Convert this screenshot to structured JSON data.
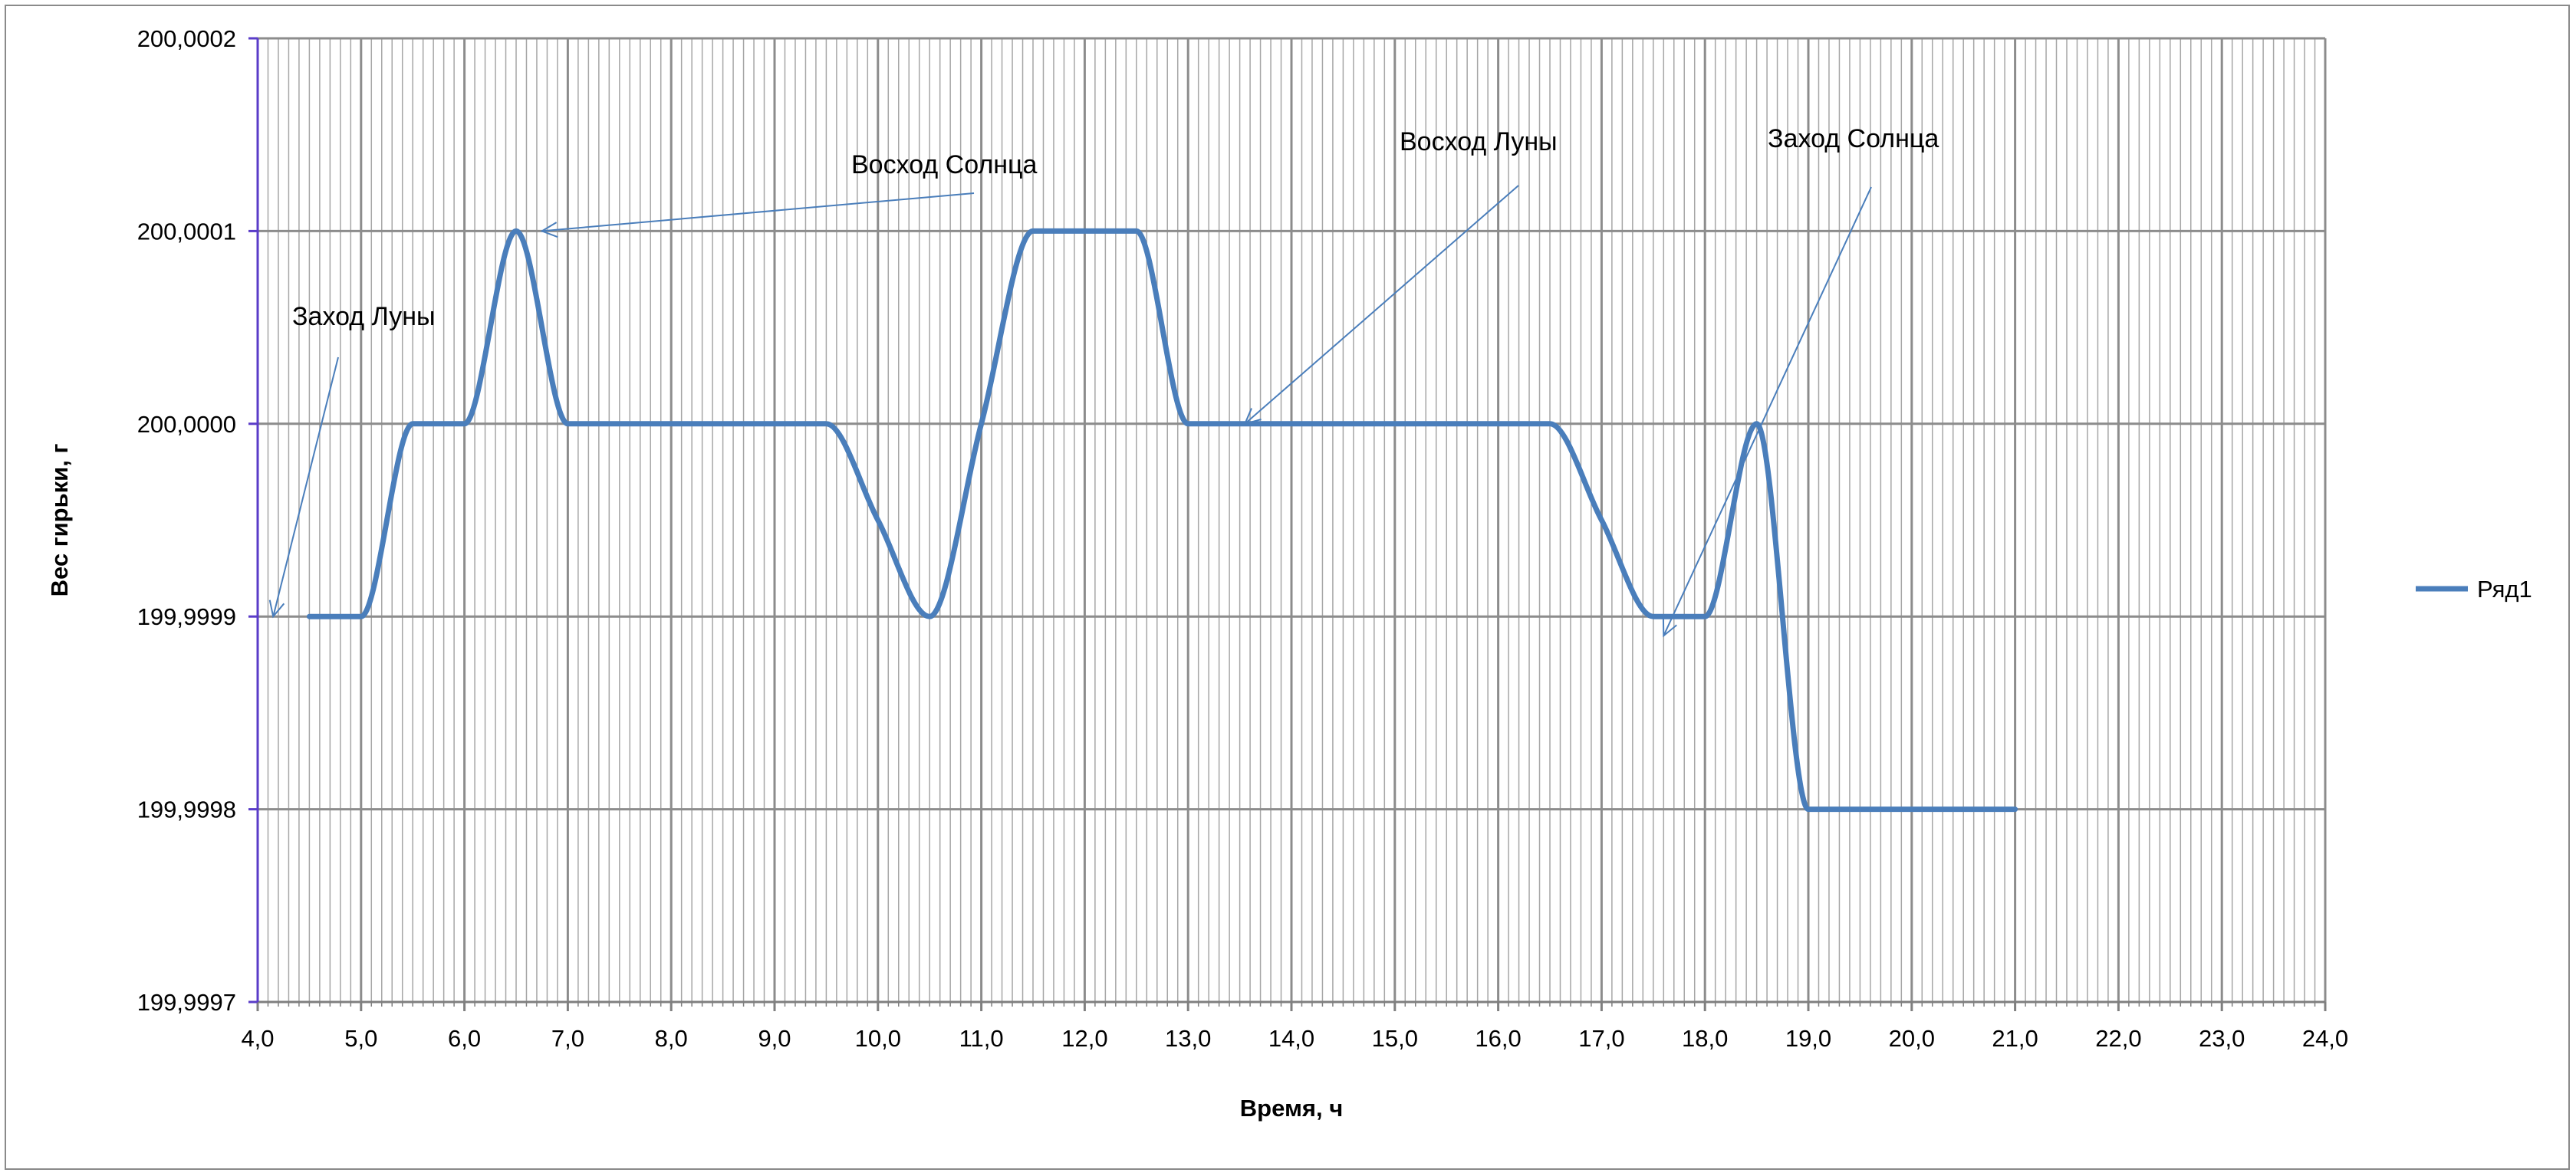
{
  "chart_data": {
    "type": "line",
    "title": "",
    "xlabel": "Время, ч",
    "ylabel": "Вес гирьки, г",
    "xlim": [
      4.0,
      24.0
    ],
    "ylim": [
      199.9997,
      200.0002
    ],
    "x_ticks": [
      "4,0",
      "5,0",
      "6,0",
      "7,0",
      "8,0",
      "9,0",
      "10,0",
      "11,0",
      "12,0",
      "13,0",
      "14,0",
      "15,0",
      "16,0",
      "17,0",
      "18,0",
      "19,0",
      "20,0",
      "21,0",
      "22,0",
      "23,0",
      "24,0"
    ],
    "y_ticks": [
      "200,0002",
      "200,0001",
      "200,0000",
      "199,9999",
      "199,9998",
      "199,9997"
    ],
    "grid": true,
    "legend_position": "right",
    "series": [
      {
        "name": "Ряд1",
        "color": "#4a7ebb",
        "x": [
          4.5,
          5.0,
          5.5,
          6.0,
          6.5,
          7.0,
          7.5,
          8.0,
          8.5,
          9.0,
          9.5,
          10.0,
          10.5,
          11.0,
          11.5,
          12.0,
          12.5,
          13.0,
          13.5,
          14.0,
          14.5,
          15.0,
          15.5,
          16.0,
          16.5,
          17.0,
          17.5,
          18.0,
          18.5,
          19.0,
          19.5,
          20.0,
          20.5,
          21.0
        ],
        "y": [
          199.9999,
          199.9999,
          200.0,
          200.0,
          200.0001,
          200.0,
          200.0,
          200.0,
          200.0,
          200.0,
          200.0,
          199.99995,
          199.9999,
          200.0,
          200.0001,
          200.0001,
          200.0001,
          200.0,
          200.0,
          200.0,
          200.0,
          200.0,
          200.0,
          200.0,
          200.0,
          199.99995,
          199.9999,
          199.9999,
          200.0,
          199.9998,
          199.9998,
          199.9998,
          199.9998,
          199.9998
        ]
      }
    ],
    "annotations": [
      {
        "text": "Заход Луны",
        "x": 4.15,
        "y": 199.9999
      },
      {
        "text": "Восход Солнца",
        "x": 6.75,
        "y": 200.0001
      },
      {
        "text": "Восход Луны",
        "x": 13.55,
        "y": 200.0
      },
      {
        "text": "Заход Солнца",
        "x": 17.6,
        "y": 199.99989
      }
    ]
  }
}
